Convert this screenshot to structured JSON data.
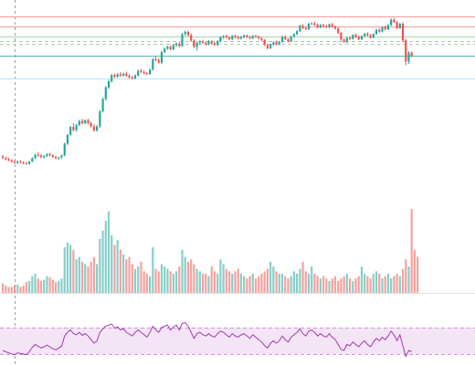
{
  "chart_data": {
    "type": "candlestick",
    "title": "",
    "xlabel": "",
    "ylabel": "",
    "grid": false,
    "legend": "none",
    "price_range": [
      0,
      100
    ],
    "colors": {
      "up": "#26a69a",
      "down": "#ef5350",
      "rsi_line": "#9c27b0",
      "rsi_band": "#f3e5f5"
    },
    "candles": [
      [
        24.1,
        24.9,
        22.8,
        23.4
      ],
      [
        23.4,
        24.0,
        22.0,
        22.7
      ],
      [
        22.7,
        23.5,
        21.6,
        22.1
      ],
      [
        22.1,
        22.8,
        20.9,
        21.4
      ],
      [
        21.4,
        22.1,
        20.3,
        20.8
      ],
      [
        20.8,
        21.9,
        19.9,
        21.5
      ],
      [
        21.5,
        22.3,
        20.5,
        21.0
      ],
      [
        21.0,
        21.6,
        20.0,
        20.6
      ],
      [
        20.6,
        21.3,
        19.7,
        20.1
      ],
      [
        20.1,
        21.8,
        19.8,
        21.4
      ],
      [
        21.4,
        23.8,
        21.0,
        23.2
      ],
      [
        23.2,
        25.6,
        22.7,
        25.1
      ],
      [
        25.1,
        26.4,
        24.0,
        24.6
      ],
      [
        24.6,
        25.5,
        23.2,
        23.8
      ],
      [
        23.8,
        25.0,
        23.1,
        24.5
      ],
      [
        24.5,
        25.9,
        23.8,
        25.4
      ],
      [
        25.4,
        26.2,
        24.2,
        24.7
      ],
      [
        24.7,
        25.3,
        23.4,
        23.9
      ],
      [
        23.9,
        24.6,
        22.7,
        23.2
      ],
      [
        23.2,
        24.0,
        22.4,
        23.6
      ],
      [
        23.6,
        25.1,
        23.1,
        24.7
      ],
      [
        24.7,
        31.5,
        24.3,
        31.0
      ],
      [
        31.0,
        36.2,
        30.2,
        35.8
      ],
      [
        35.8,
        40.4,
        35.0,
        39.9
      ],
      [
        39.9,
        41.9,
        37.7,
        38.3
      ],
      [
        38.3,
        41.6,
        37.3,
        41.0
      ],
      [
        41.0,
        43.8,
        40.4,
        43.1
      ],
      [
        43.1,
        44.4,
        41.2,
        41.9
      ],
      [
        41.9,
        44.0,
        41.4,
        43.5
      ],
      [
        43.5,
        44.4,
        41.3,
        42.0
      ],
      [
        42.0,
        42.9,
        39.6,
        40.2
      ],
      [
        40.2,
        41.6,
        37.3,
        38.0
      ],
      [
        38.0,
        40.9,
        37.4,
        40.2
      ],
      [
        40.2,
        49.0,
        39.5,
        48.3
      ],
      [
        48.3,
        55.6,
        47.6,
        54.9
      ],
      [
        54.9,
        61.8,
        54.2,
        61.1
      ],
      [
        61.1,
        65.2,
        60.2,
        64.4
      ],
      [
        64.4,
        68.3,
        63.6,
        67.6
      ],
      [
        67.6,
        68.5,
        66.1,
        66.8
      ],
      [
        66.8,
        68.8,
        66.2,
        68.1
      ],
      [
        68.1,
        69.3,
        66.6,
        67.4
      ],
      [
        67.4,
        69.0,
        66.9,
        68.4
      ],
      [
        68.4,
        69.5,
        66.7,
        67.3
      ],
      [
        67.3,
        68.0,
        65.8,
        66.5
      ],
      [
        66.5,
        67.3,
        65.2,
        65.9
      ],
      [
        65.9,
        68.1,
        65.4,
        67.5
      ],
      [
        67.5,
        70.6,
        66.9,
        70.0
      ],
      [
        70.0,
        71.0,
        68.7,
        69.3
      ],
      [
        69.3,
        70.2,
        68.0,
        68.7
      ],
      [
        68.7,
        69.4,
        67.6,
        68.2
      ],
      [
        68.2,
        71.2,
        67.8,
        70.6
      ],
      [
        70.6,
        76.8,
        70.1,
        76.1
      ],
      [
        76.1,
        77.5,
        75.0,
        75.7
      ],
      [
        75.7,
        76.6,
        73.8,
        74.3
      ],
      [
        74.3,
        80.7,
        73.5,
        80.0
      ],
      [
        80.0,
        82.4,
        79.3,
        81.8
      ],
      [
        81.8,
        83.4,
        81.2,
        82.8
      ],
      [
        82.8,
        83.5,
        81.0,
        81.4
      ],
      [
        81.4,
        84.0,
        80.9,
        83.6
      ],
      [
        83.6,
        85.1,
        82.8,
        84.5
      ],
      [
        84.5,
        85.4,
        82.6,
        83.1
      ],
      [
        83.1,
        90.1,
        82.8,
        89.6
      ],
      [
        89.6,
        91.5,
        88.6,
        90.8
      ],
      [
        90.8,
        91.5,
        88.5,
        89.0
      ],
      [
        89.0,
        89.9,
        85.4,
        86.1
      ],
      [
        86.1,
        86.9,
        82.1,
        82.8
      ],
      [
        82.8,
        85.5,
        80.7,
        85.0
      ],
      [
        85.0,
        86.2,
        83.8,
        85.6
      ],
      [
        85.6,
        86.6,
        84.3,
        84.9
      ],
      [
        84.9,
        85.5,
        83.5,
        84.1
      ],
      [
        84.1,
        86.4,
        83.6,
        85.7
      ],
      [
        85.7,
        86.3,
        84.0,
        84.6
      ],
      [
        84.6,
        85.5,
        83.2,
        83.8
      ],
      [
        83.8,
        86.3,
        83.2,
        85.8
      ],
      [
        85.8,
        88.5,
        85.1,
        88.0
      ],
      [
        88.0,
        89.0,
        87.1,
        88.4
      ],
      [
        88.4,
        89.3,
        87.3,
        87.7
      ],
      [
        87.7,
        88.4,
        86.2,
        86.9
      ],
      [
        86.9,
        89.1,
        86.3,
        88.6
      ],
      [
        88.6,
        89.2,
        87.3,
        87.9
      ],
      [
        87.9,
        88.8,
        86.7,
        87.2
      ],
      [
        87.2,
        88.6,
        86.6,
        88.1
      ],
      [
        88.1,
        89.5,
        87.4,
        88.8
      ],
      [
        88.8,
        89.4,
        87.5,
        88.0
      ],
      [
        88.0,
        88.7,
        86.8,
        87.4
      ],
      [
        87.4,
        89.1,
        86.9,
        88.6
      ],
      [
        88.6,
        89.3,
        87.6,
        88.1
      ],
      [
        88.1,
        88.8,
        86.7,
        87.3
      ],
      [
        87.3,
        88.0,
        85.8,
        86.4
      ],
      [
        86.4,
        87.0,
        83.2,
        83.8
      ],
      [
        83.8,
        84.5,
        81.5,
        82.1
      ],
      [
        82.1,
        84.4,
        81.6,
        84.0
      ],
      [
        84.0,
        85.7,
        83.4,
        85.2
      ],
      [
        85.2,
        86.0,
        83.6,
        84.1
      ],
      [
        84.1,
        85.9,
        83.7,
        85.4
      ],
      [
        85.4,
        88.7,
        85.0,
        88.1
      ],
      [
        88.1,
        89.0,
        86.4,
        86.9
      ],
      [
        86.9,
        87.5,
        85.1,
        85.7
      ],
      [
        85.7,
        88.6,
        85.4,
        88.3
      ],
      [
        88.3,
        90.1,
        87.8,
        89.5
      ],
      [
        89.5,
        91.6,
        89.0,
        91.1
      ],
      [
        91.1,
        94.6,
        90.6,
        94.0
      ],
      [
        94.0,
        94.8,
        92.3,
        92.8
      ],
      [
        92.8,
        93.7,
        91.6,
        92.2
      ],
      [
        92.2,
        95.6,
        91.7,
        95.1
      ],
      [
        95.1,
        95.9,
        94.5,
        95.3
      ],
      [
        95.3,
        96.2,
        94.0,
        94.6
      ],
      [
        94.6,
        95.3,
        92.7,
        93.2
      ],
      [
        93.2,
        95.0,
        92.6,
        94.5
      ],
      [
        94.5,
        95.1,
        93.2,
        93.8
      ],
      [
        93.8,
        94.6,
        92.8,
        93.3
      ],
      [
        93.3,
        95.2,
        92.8,
        94.8
      ],
      [
        94.8,
        95.7,
        93.1,
        93.7
      ],
      [
        93.7,
        94.4,
        91.9,
        92.6
      ],
      [
        92.6,
        93.1,
        89.7,
        90.2
      ],
      [
        90.2,
        90.9,
        86.0,
        86.6
      ],
      [
        86.6,
        87.3,
        84.9,
        85.5
      ],
      [
        85.5,
        88.0,
        84.8,
        87.6
      ],
      [
        87.6,
        88.3,
        86.4,
        87.0
      ],
      [
        87.0,
        89.5,
        86.6,
        89.1
      ],
      [
        89.1,
        89.9,
        87.6,
        88.1
      ],
      [
        88.1,
        89.0,
        86.3,
        86.8
      ],
      [
        86.8,
        88.9,
        86.4,
        88.5
      ],
      [
        88.5,
        90.3,
        88.0,
        89.8
      ],
      [
        89.8,
        90.6,
        88.3,
        88.9
      ],
      [
        88.9,
        89.6,
        87.1,
        87.7
      ],
      [
        87.7,
        90.1,
        87.3,
        89.6
      ],
      [
        89.6,
        92.4,
        89.1,
        91.8
      ],
      [
        91.8,
        92.7,
        90.3,
        90.9
      ],
      [
        90.9,
        93.8,
        90.5,
        93.2
      ],
      [
        93.2,
        94.1,
        91.5,
        92.1
      ],
      [
        92.1,
        94.9,
        91.7,
        94.4
      ],
      [
        94.4,
        98.0,
        93.9,
        97.3
      ],
      [
        97.3,
        98.2,
        95.5,
        96.0
      ],
      [
        96.0,
        96.6,
        92.2,
        92.8
      ],
      [
        92.8,
        95.6,
        92.4,
        95.1
      ],
      [
        95.1,
        95.9,
        85.3,
        86.2
      ],
      [
        86.2,
        87.0,
        72.9,
        75.0
      ],
      [
        75.0,
        80.5,
        73.7,
        79.6
      ],
      [
        79.6,
        80.4,
        77.2,
        78.0
      ]
    ],
    "volume": [
      8,
      6,
      5,
      5,
      6,
      7,
      5,
      6,
      9,
      10,
      14,
      16,
      12,
      10,
      11,
      14,
      13,
      11,
      9,
      10,
      12,
      38,
      42,
      40,
      36,
      28,
      30,
      26,
      24,
      22,
      26,
      30,
      24,
      45,
      52,
      60,
      68,
      48,
      40,
      44,
      36,
      32,
      28,
      30,
      24,
      20,
      22,
      26,
      18,
      16,
      14,
      38,
      20,
      18,
      24,
      22,
      20,
      18,
      16,
      18,
      22,
      36,
      30,
      26,
      28,
      24,
      20,
      18,
      16,
      16,
      14,
      22,
      18,
      16,
      28,
      24,
      20,
      18,
      16,
      18,
      20,
      16,
      14,
      12,
      14,
      16,
      12,
      14,
      16,
      18,
      20,
      26,
      22,
      18,
      16,
      16,
      14,
      12,
      14,
      18,
      16,
      20,
      26,
      18,
      16,
      22,
      16,
      14,
      12,
      14,
      12,
      10,
      12,
      14,
      10,
      12,
      14,
      16,
      12,
      10,
      12,
      14,
      22,
      16,
      14,
      12,
      16,
      18,
      16,
      12,
      14,
      16,
      12,
      14,
      16,
      14,
      20,
      28,
      22,
      70,
      36,
      30
    ],
    "rsi": [
      40,
      38,
      36,
      34,
      33,
      36,
      35,
      34,
      33,
      38,
      45,
      50,
      47,
      44,
      46,
      49,
      46,
      43,
      41,
      44,
      47,
      64,
      70,
      74,
      68,
      66,
      70,
      65,
      68,
      64,
      58,
      52,
      56,
      70,
      76,
      80,
      82,
      84,
      77,
      79,
      74,
      76,
      70,
      67,
      64,
      70,
      74,
      70,
      66,
      62,
      70,
      80,
      74,
      70,
      78,
      80,
      82,
      74,
      79,
      82,
      74,
      85,
      86,
      80,
      70,
      60,
      68,
      70,
      66,
      64,
      68,
      64,
      62,
      68,
      72,
      70,
      66,
      62,
      68,
      64,
      62,
      66,
      68,
      64,
      60,
      66,
      62,
      58,
      54,
      48,
      44,
      52,
      56,
      52,
      56,
      64,
      58,
      54,
      62,
      66,
      70,
      76,
      68,
      64,
      72,
      74,
      70,
      64,
      68,
      64,
      62,
      68,
      62,
      58,
      50,
      42,
      40,
      50,
      48,
      54,
      50,
      46,
      52,
      56,
      50,
      46,
      54,
      60,
      56,
      62,
      58,
      64,
      72,
      66,
      56,
      66,
      48,
      30,
      40,
      38
    ],
    "horizontal_levels": [
      {
        "value": 99.0,
        "color": "#ef9a9a"
      },
      {
        "value": 93.5,
        "color": "#ef9a9a"
      },
      {
        "value": 88.5,
        "color": "#a5d6a7"
      },
      {
        "value": 85.7,
        "color": "#bdbdbd",
        "dashed": true
      },
      {
        "value": 84.6,
        "color": "#a5d6a7",
        "dashed": true
      },
      {
        "value": 78.0,
        "color": "#4db6ac"
      },
      {
        "value": 66.0,
        "color": "#b3e5fc"
      }
    ]
  }
}
